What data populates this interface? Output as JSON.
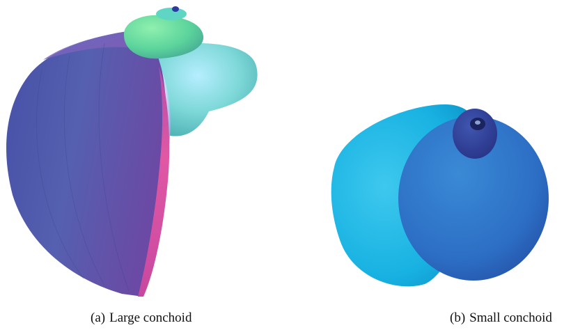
{
  "figure": {
    "panel_a": {
      "tag": "(a)",
      "caption": "Large conchoid",
      "subject": "large-conchoid-shell",
      "colors": {
        "outer_body": "#4a55a8",
        "outer_body_dark": "#3a4696",
        "inner_lip": "#e0509c",
        "inner_lip_dark": "#a04aa0",
        "spire_green": "#66e0a4",
        "spire_cyan": "#7ad6dc",
        "apex_blue": "#2d3aa0"
      }
    },
    "panel_b": {
      "tag": "(b)",
      "caption": "Small conchoid",
      "subject": "small-conchoid-shell",
      "colors": {
        "outer_body": "#19b6e4",
        "main_whorl": "#2f7dcc",
        "main_whorl_dark": "#2a5aa8",
        "spire": "#2c3c94",
        "apex": "#1c2460"
      }
    }
  }
}
